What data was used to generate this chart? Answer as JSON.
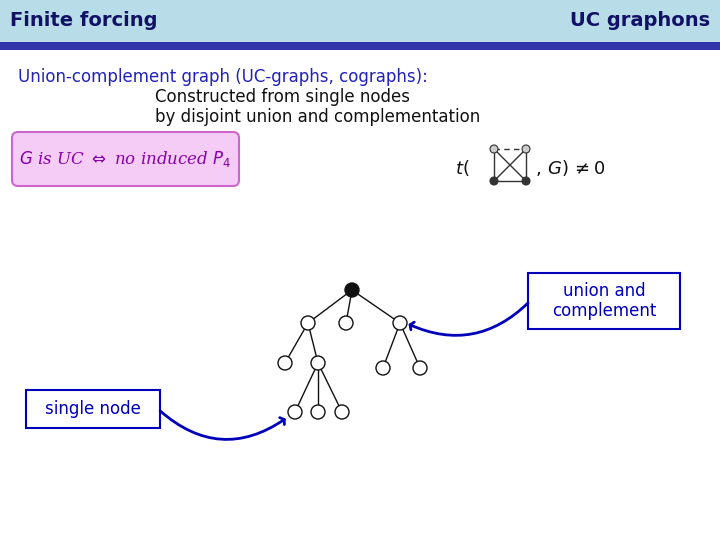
{
  "header_bg_color": "#b8dde8",
  "header_line_color": "#3333aa",
  "header_left_text": "Finite forcing",
  "header_right_text": "UC graphons",
  "header_text_color": "#111166",
  "header_font_size": 14,
  "bg_color": "#ffffff",
  "title1_color": "#2222bb",
  "title1": "Union-complement graph (UC-graphs, cographs):",
  "title2_color": "#111111",
  "title2a": "Constructed from single nodes",
  "title2b": "by disjoint union and complementation",
  "box_text": "$G$ is UC $\\Leftrightarrow$ no induced $P_4$",
  "box_bg": "#f5ccf5",
  "box_border": "#cc66cc",
  "box_text_color": "#8800aa",
  "node_color_filled": "#111111",
  "node_color_open": "#ffffff",
  "node_edge_color": "#111111",
  "arrow_color": "#0000bb",
  "label_union": "union and\ncomplement",
  "label_single": "single node",
  "label_box_border": "#0000bb",
  "label_box_bg": "#ffffff",
  "label_text_color": "#0000bb"
}
